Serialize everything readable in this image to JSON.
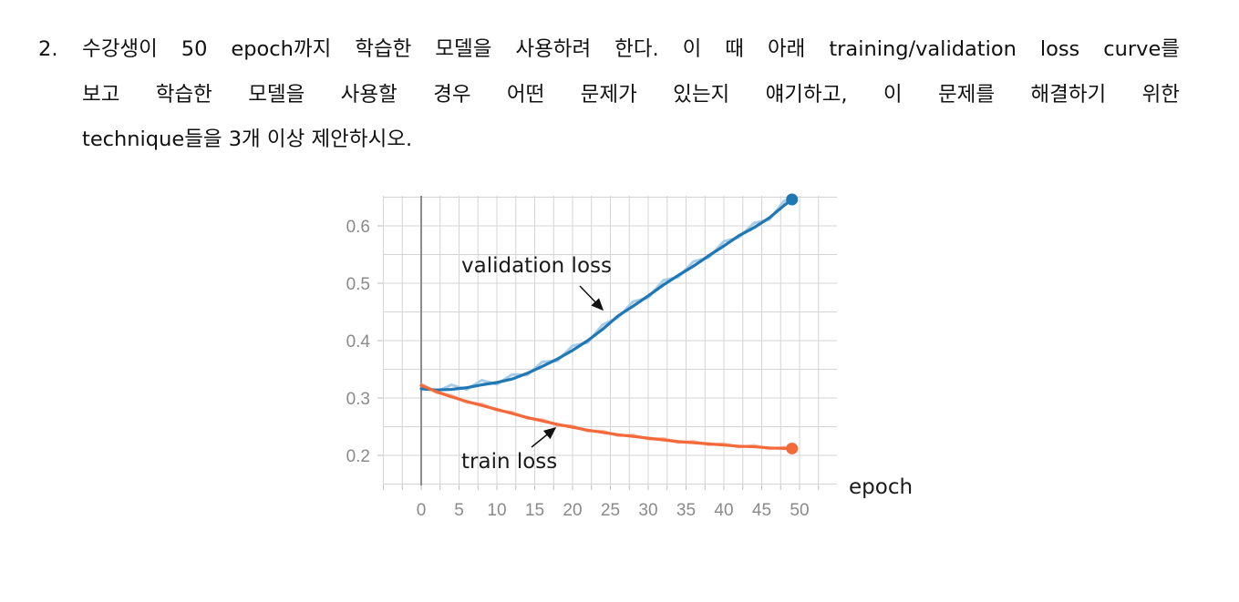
{
  "question": {
    "number": "2.",
    "lines": [
      "수강생이 50 epoch까지 학습한 모델을 사용하려 한다. 이 때 아래 training/validation loss curve를",
      "보고 학습한 모델을 사용할 경우 어떤 문제가 있는지 얘기하고, 이 문제를 해결하기 위한",
      "technique들을 3개 이상 제안하시오."
    ]
  },
  "chart_data": {
    "type": "line",
    "xlabel": "epoch",
    "ylabel": "",
    "xlim": [
      -5,
      55
    ],
    "ylim": [
      0.15,
      0.67
    ],
    "x_ticks": [
      "0",
      "5",
      "10",
      "15",
      "20",
      "25",
      "30",
      "35",
      "40",
      "45",
      "50"
    ],
    "y_ticks": [
      "0.6",
      "0.5",
      "0.4",
      "0.3",
      "0.2"
    ],
    "grid": true,
    "annotations": [
      "validation loss",
      "train loss"
    ],
    "colors": {
      "validation": "#1f77b4",
      "validation_raw": "#a9cde8",
      "train": "#f4693a",
      "train_raw": "#f9b9a2",
      "grid": "#d4d4d4",
      "origin_line": "#8c8c8c"
    },
    "series": [
      {
        "name": "validation loss",
        "x": [
          0,
          2,
          4,
          6,
          8,
          10,
          12,
          14,
          16,
          18,
          20,
          22,
          24,
          26,
          28,
          30,
          32,
          34,
          36,
          38,
          40,
          42,
          44,
          46,
          48,
          49
        ],
        "values": [
          0.316,
          0.314,
          0.315,
          0.318,
          0.323,
          0.327,
          0.333,
          0.343,
          0.355,
          0.368,
          0.383,
          0.4,
          0.42,
          0.443,
          0.46,
          0.478,
          0.497,
          0.514,
          0.53,
          0.548,
          0.565,
          0.583,
          0.597,
          0.614,
          0.636,
          0.646
        ]
      },
      {
        "name": "train loss",
        "x": [
          0,
          2,
          4,
          6,
          8,
          10,
          12,
          14,
          16,
          18,
          20,
          22,
          24,
          26,
          28,
          30,
          32,
          34,
          36,
          38,
          40,
          42,
          44,
          46,
          48,
          49
        ],
        "values": [
          0.322,
          0.311,
          0.302,
          0.294,
          0.287,
          0.28,
          0.273,
          0.266,
          0.26,
          0.254,
          0.249,
          0.244,
          0.24,
          0.236,
          0.233,
          0.23,
          0.227,
          0.224,
          0.222,
          0.22,
          0.218,
          0.216,
          0.215,
          0.213,
          0.212,
          0.212
        ]
      }
    ]
  }
}
